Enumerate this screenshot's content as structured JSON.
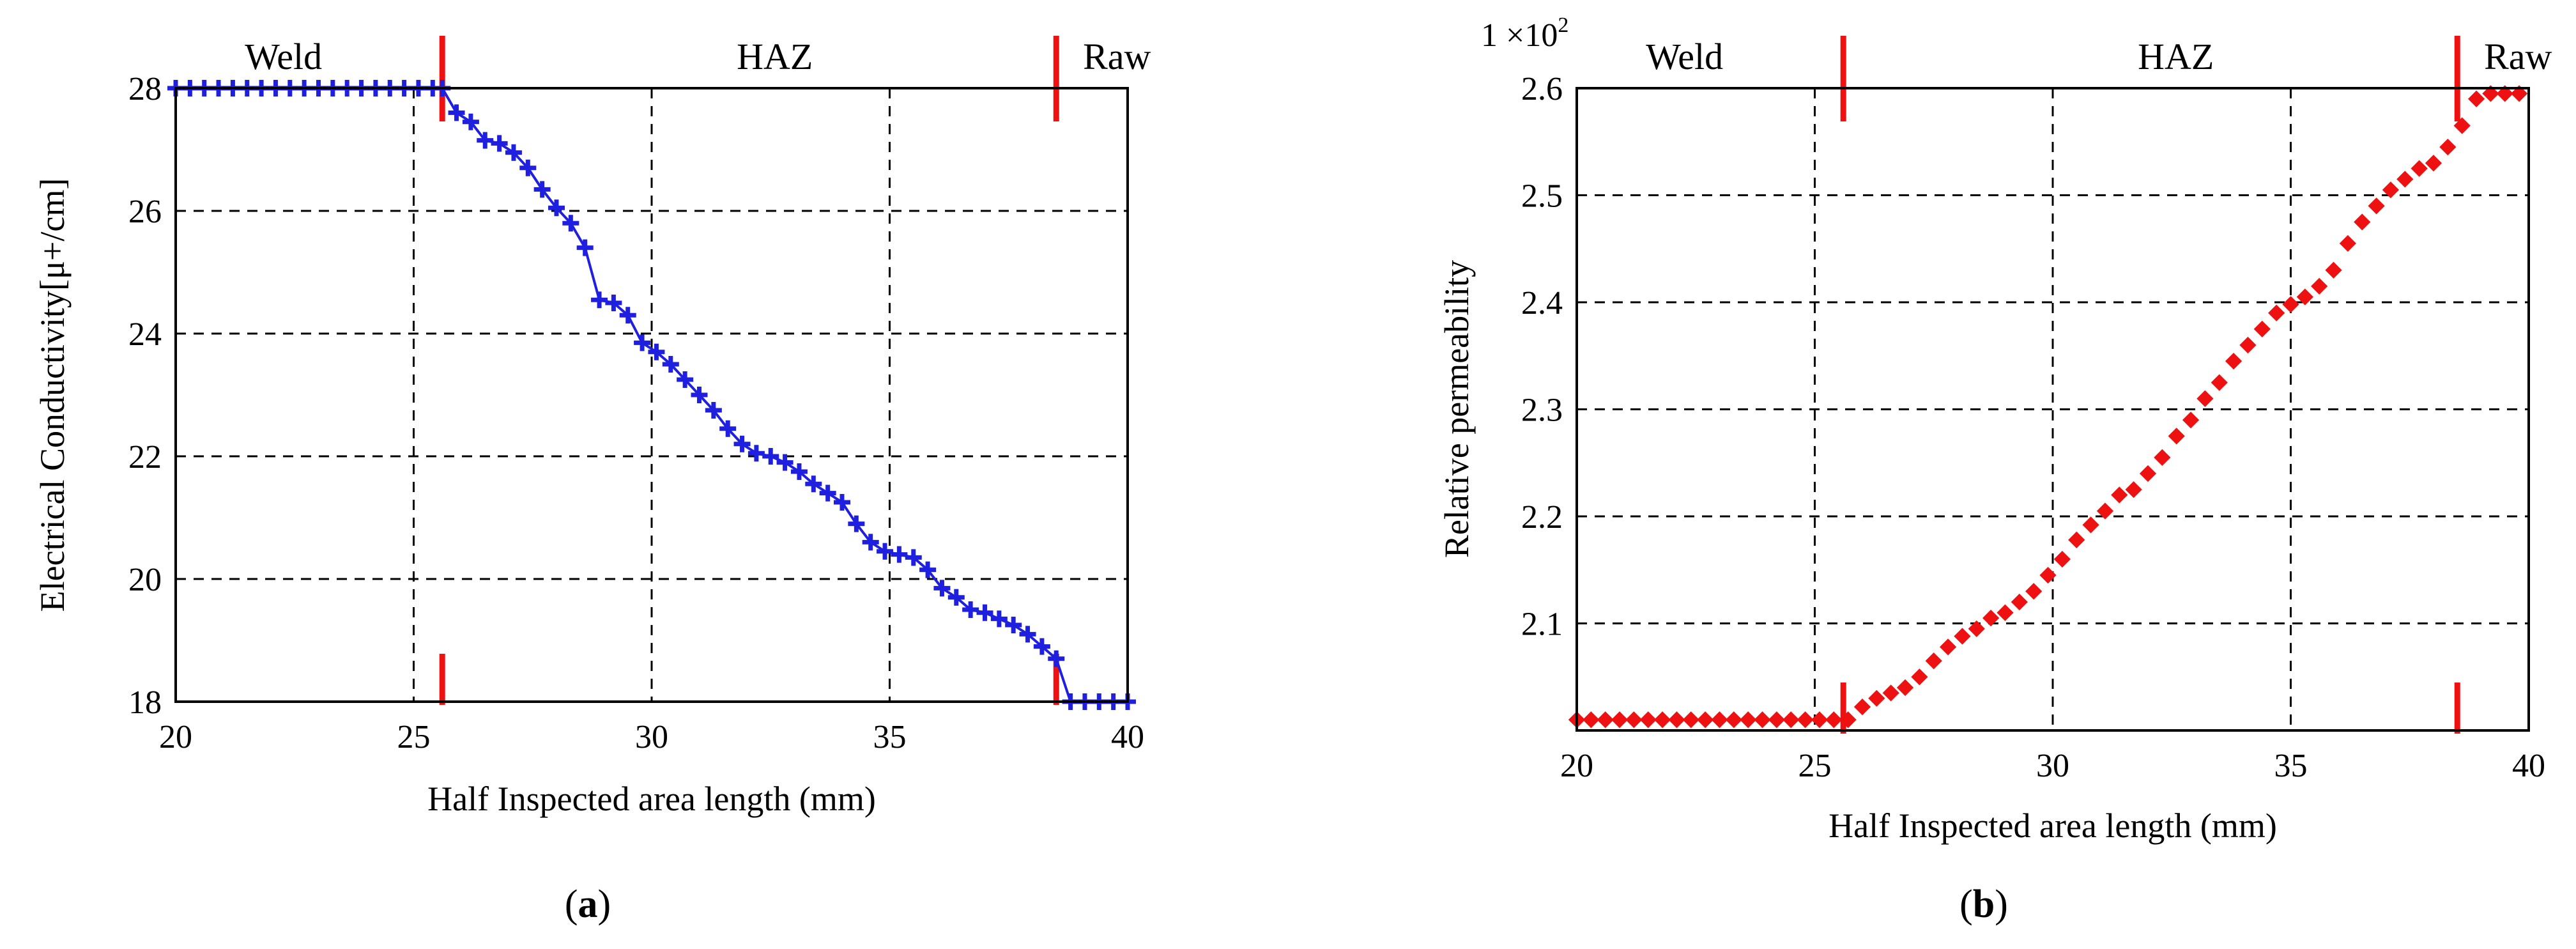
{
  "chart_data": [
    {
      "type": "line",
      "panel_label": "a",
      "xlabel": "Half Inspected area length (mm)",
      "ylabel": "Electrical Conductivity[μ+/cm]",
      "xlim": [
        20,
        40
      ],
      "ylim": [
        18,
        28
      ],
      "xticks": [
        "20",
        "25",
        "30",
        "35",
        "40"
      ],
      "yticks": [
        "18",
        "20",
        "22",
        "24",
        "26",
        "28"
      ],
      "grid": true,
      "regions": [
        "Weld",
        "HAZ",
        "Raw"
      ],
      "region_boundaries": [
        25.6,
        38.5
      ],
      "series": [
        {
          "color": "#1f1fe0",
          "x": [
            20.0,
            20.3,
            20.6,
            20.9,
            21.2,
            21.5,
            21.8,
            22.1,
            22.4,
            22.7,
            23.0,
            23.3,
            23.6,
            23.9,
            24.2,
            24.5,
            24.8,
            25.1,
            25.4,
            25.6,
            25.9,
            26.2,
            26.5,
            26.8,
            27.1,
            27.4,
            27.7,
            28.0,
            28.3,
            28.6,
            28.9,
            29.2,
            29.5,
            29.8,
            30.1,
            30.4,
            30.7,
            31.0,
            31.3,
            31.6,
            31.9,
            32.2,
            32.5,
            32.8,
            33.1,
            33.4,
            33.7,
            34.0,
            34.3,
            34.6,
            34.9,
            35.2,
            35.5,
            35.8,
            36.1,
            36.4,
            36.7,
            37.0,
            37.3,
            37.6,
            37.9,
            38.2,
            38.5,
            38.8,
            39.1,
            39.4,
            39.7,
            40.0
          ],
          "y": [
            28.0,
            28.0,
            28.0,
            28.0,
            28.0,
            28.0,
            28.0,
            28.0,
            28.0,
            28.0,
            28.0,
            28.0,
            28.0,
            28.0,
            28.0,
            28.0,
            28.0,
            28.0,
            28.0,
            28.0,
            27.6,
            27.45,
            27.15,
            27.1,
            26.95,
            26.7,
            26.35,
            26.05,
            25.8,
            25.4,
            24.55,
            24.5,
            24.3,
            23.85,
            23.7,
            23.5,
            23.25,
            23.0,
            22.75,
            22.45,
            22.2,
            22.05,
            22.0,
            21.9,
            21.75,
            21.55,
            21.4,
            21.25,
            20.9,
            20.6,
            20.45,
            20.4,
            20.35,
            20.15,
            19.85,
            19.7,
            19.5,
            19.45,
            19.35,
            19.25,
            19.1,
            18.9,
            18.7,
            18.0,
            18.0,
            18.0,
            18.0,
            18.0
          ]
        }
      ]
    },
    {
      "type": "scatter",
      "panel_label": "b",
      "xlabel": "Half Inspected area length (mm)",
      "ylabel": "Relative permeability",
      "axis_multiplier": "1 ×10",
      "axis_multiplier_exponent": "2",
      "xlim": [
        20,
        40
      ],
      "ylim": [
        2.0,
        2.6
      ],
      "xticks": [
        "20",
        "25",
        "30",
        "35",
        "40"
      ],
      "yticks": [
        "2.1",
        "2.2",
        "2.3",
        "2.4",
        "2.5",
        "2.6"
      ],
      "ytick_values": [
        2.1,
        2.2,
        2.3,
        2.4,
        2.5,
        2.6
      ],
      "grid": true,
      "regions": [
        "Weld",
        "HAZ",
        "Raw"
      ],
      "region_boundaries": [
        25.6,
        38.5
      ],
      "series": [
        {
          "color": "#ee1111",
          "x": [
            20.0,
            20.3,
            20.6,
            20.9,
            21.2,
            21.5,
            21.8,
            22.1,
            22.4,
            22.7,
            23.0,
            23.3,
            23.6,
            23.9,
            24.2,
            24.5,
            24.8,
            25.1,
            25.4,
            25.7,
            26.0,
            26.3,
            26.6,
            26.9,
            27.2,
            27.5,
            27.8,
            28.1,
            28.4,
            28.7,
            29.0,
            29.3,
            29.6,
            29.9,
            30.2,
            30.5,
            30.8,
            31.1,
            31.4,
            31.7,
            32.0,
            32.3,
            32.6,
            32.9,
            33.2,
            33.5,
            33.8,
            34.1,
            34.4,
            34.7,
            35.0,
            35.3,
            35.6,
            35.9,
            36.2,
            36.5,
            36.8,
            37.1,
            37.4,
            37.7,
            38.0,
            38.3,
            38.6,
            38.9,
            39.2,
            39.5,
            39.8
          ],
          "y": [
            2.01,
            2.01,
            2.01,
            2.01,
            2.01,
            2.01,
            2.01,
            2.01,
            2.01,
            2.01,
            2.01,
            2.01,
            2.01,
            2.01,
            2.01,
            2.01,
            2.01,
            2.01,
            2.01,
            2.01,
            2.022,
            2.03,
            2.035,
            2.04,
            2.05,
            2.065,
            2.078,
            2.088,
            2.095,
            2.105,
            2.11,
            2.12,
            2.13,
            2.145,
            2.16,
            2.178,
            2.192,
            2.205,
            2.22,
            2.225,
            2.24,
            2.255,
            2.275,
            2.29,
            2.31,
            2.325,
            2.345,
            2.36,
            2.375,
            2.39,
            2.398,
            2.405,
            2.415,
            2.43,
            2.455,
            2.475,
            2.49,
            2.505,
            2.515,
            2.525,
            2.53,
            2.545,
            2.565,
            2.59,
            2.595,
            2.595,
            2.595
          ]
        }
      ]
    }
  ]
}
